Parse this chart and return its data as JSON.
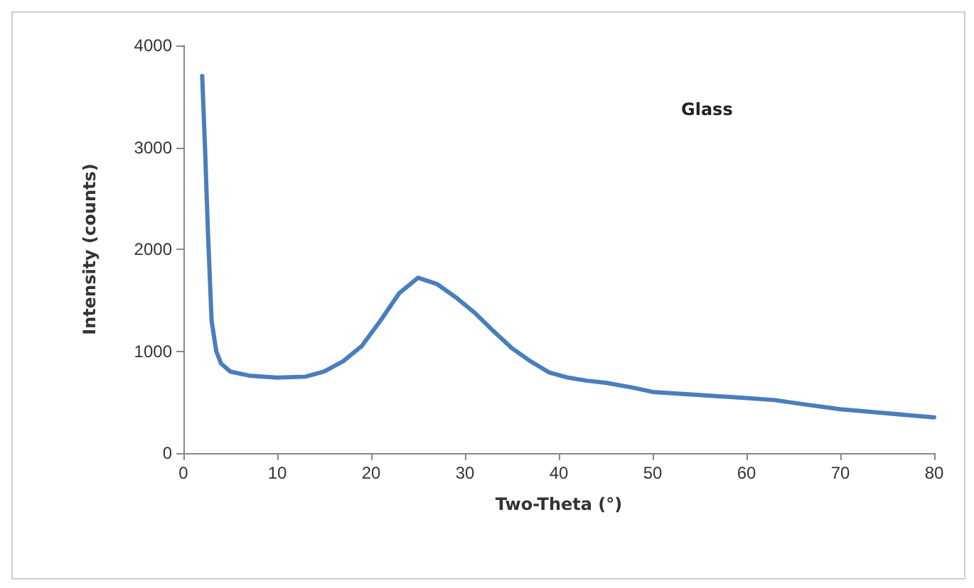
{
  "chart_data": {
    "type": "line",
    "xlabel": "Two-Theta (°)",
    "ylabel": "Intensity (counts)",
    "annotations": [
      "Glass"
    ],
    "x": [
      2,
      2.3,
      2.6,
      3,
      3.5,
      4,
      5,
      7,
      10,
      13,
      15,
      17,
      19,
      21,
      23,
      25,
      27,
      29,
      31,
      33,
      35,
      37,
      39,
      41,
      43,
      45,
      48,
      50,
      55,
      60,
      63,
      66,
      70,
      75,
      80
    ],
    "series": [
      {
        "color": "#4a7ebb",
        "values": [
          3700,
          3000,
          2200,
          1300,
          1000,
          880,
          800,
          760,
          740,
          750,
          800,
          900,
          1050,
          1300,
          1570,
          1720,
          1660,
          1530,
          1380,
          1200,
          1030,
          900,
          790,
          740,
          710,
          690,
          640,
          600,
          570,
          540,
          520,
          480,
          430,
          390,
          350
        ]
      }
    ],
    "xlim": [
      0,
      80
    ],
    "xticks": [
      0,
      10,
      20,
      30,
      40,
      50,
      60,
      70,
      80
    ],
    "ylim": [
      0,
      4000
    ],
    "yticks": [
      0,
      1000,
      2000,
      3000,
      4000
    ],
    "grid": false,
    "marker": "none",
    "line_style": "solid"
  }
}
